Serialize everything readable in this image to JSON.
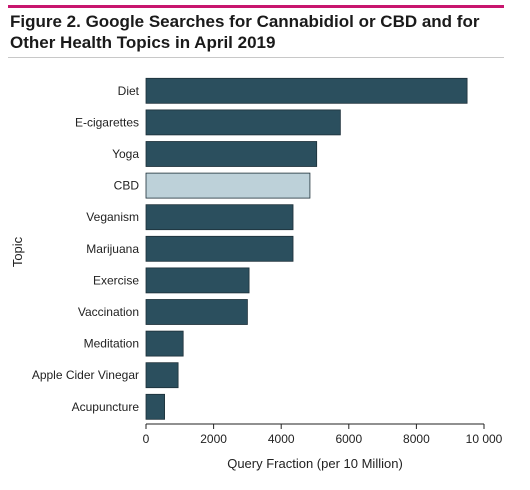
{
  "figure": {
    "title": "Figure 2. Google Searches for Cannabidiol or CBD and for Other Health Topics in April 2019"
  },
  "colors": {
    "accent": "#c8166e",
    "bar": "#2b4f5e",
    "highlight": "#bdd1d9",
    "axis": "#222222"
  },
  "chart_data": {
    "type": "bar",
    "orientation": "horizontal",
    "categories": [
      "Diet",
      "E-cigarettes",
      "Yoga",
      "CBD",
      "Veganism",
      "Marijuana",
      "Exercise",
      "Vaccination",
      "Meditation",
      "Apple Cider Vinegar",
      "Acupuncture"
    ],
    "values": [
      9500,
      5750,
      5050,
      4850,
      4350,
      4350,
      3050,
      3000,
      1100,
      950,
      550
    ],
    "highlight": "CBD",
    "xlabel": "Query Fraction (per 10 Million)",
    "ylabel": "Topic",
    "xlim": [
      0,
      10000
    ],
    "xticks": [
      0,
      2000,
      4000,
      6000,
      8000,
      10000
    ],
    "xtick_labels": [
      "0",
      "2000",
      "4000",
      "6000",
      "8000",
      "10 000"
    ],
    "grid": false
  }
}
